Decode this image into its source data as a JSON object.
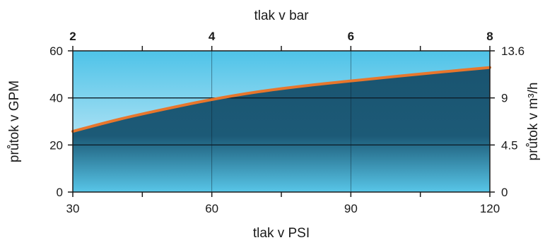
{
  "chart_data": {
    "type": "area",
    "top_axis": {
      "label": "tlak v bar",
      "ticks": [
        "2",
        "4",
        "6",
        "8"
      ],
      "values": [
        2,
        4,
        6,
        8
      ]
    },
    "bottom_axis": {
      "label": "tlak v PSI",
      "ticks": [
        "30",
        "60",
        "90",
        "120"
      ],
      "range": [
        30,
        120
      ]
    },
    "left_axis": {
      "label": "průtok v GPM",
      "ticks": [
        "0",
        "20",
        "40",
        "60"
      ],
      "range": [
        0,
        60
      ]
    },
    "right_axis": {
      "label": "průtok v m³/h",
      "ticks": [
        "0",
        "4.5",
        "9",
        "13.6"
      ]
    },
    "series": [
      {
        "x": [
          30,
          40,
          50,
          60,
          70,
          80,
          90,
          100,
          110,
          120
        ],
        "y": [
          25.8,
          30.9,
          35.3,
          39.3,
          42.6,
          45.1,
          47.2,
          49.2,
          51.1,
          52.9
        ]
      }
    ],
    "grid": true,
    "colors": {
      "fill": "#1a5470",
      "line": "#e8762c",
      "sky_top": "#4ec3e8",
      "sky_bottom": "#e6f4fb"
    }
  }
}
